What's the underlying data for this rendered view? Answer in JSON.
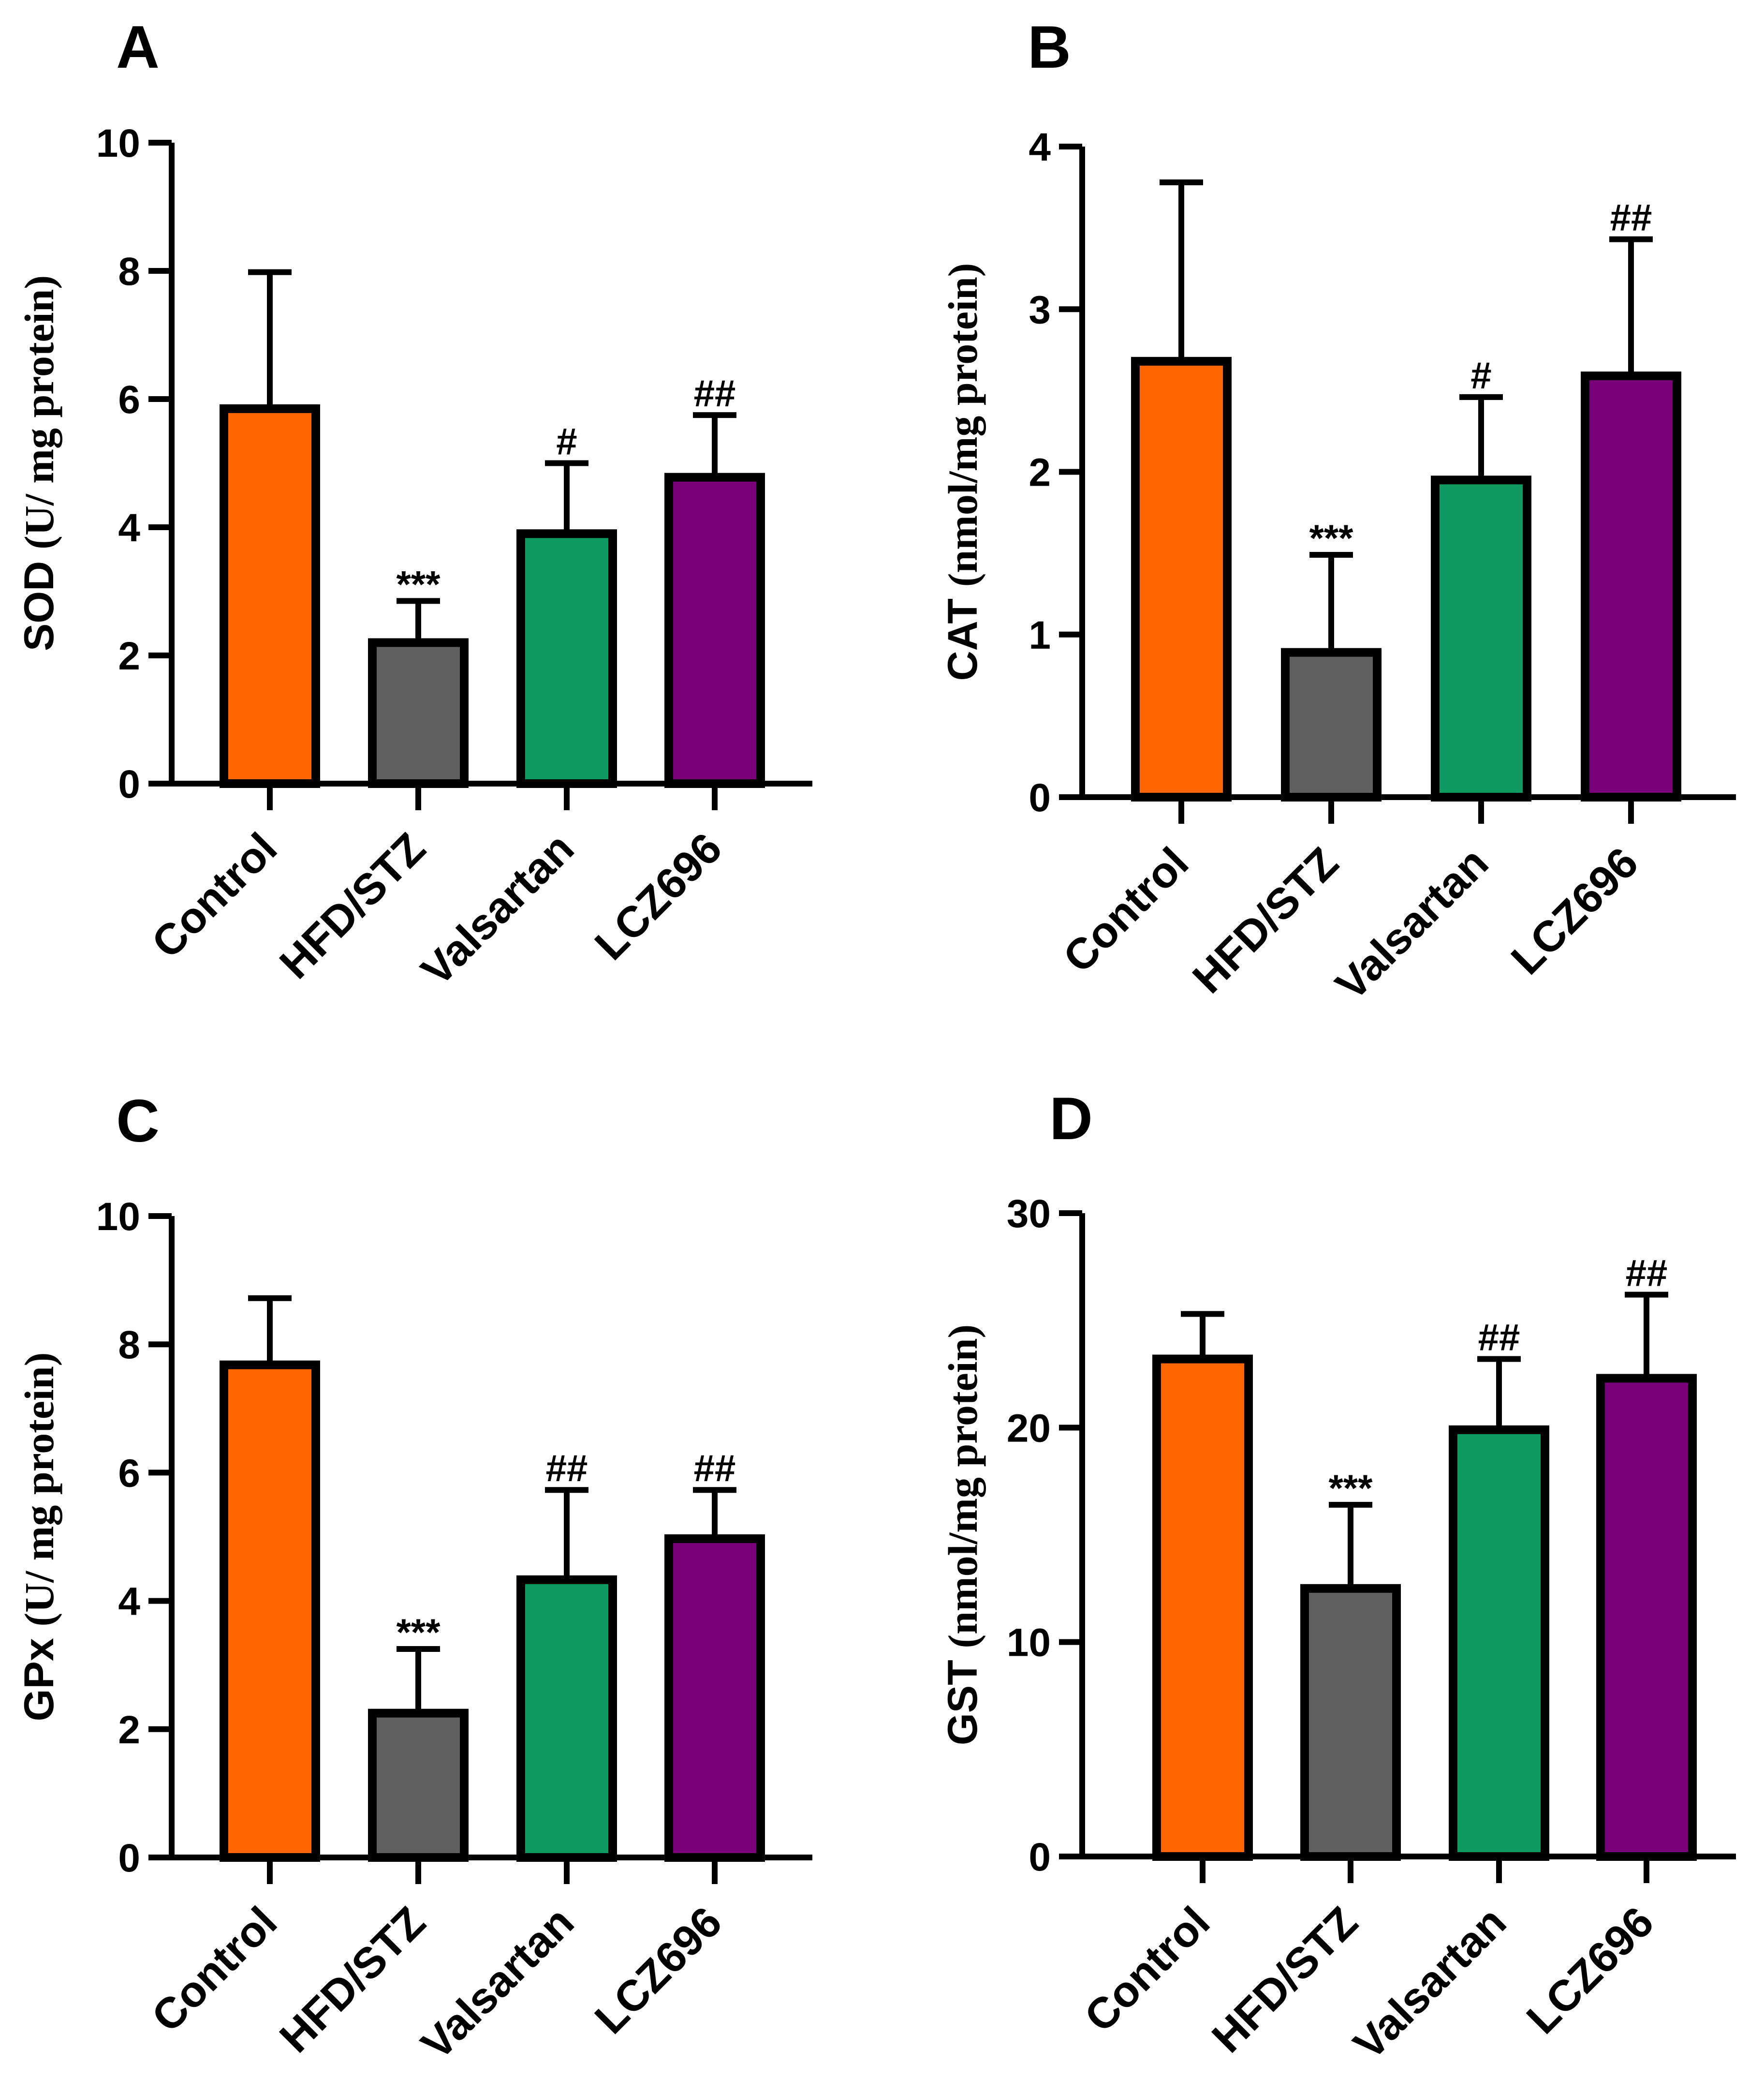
{
  "figure": {
    "categories": [
      "Control",
      "HFD/STZ",
      "Valsartan",
      "LCZ696"
    ],
    "colors": {
      "Control": "#FF6600",
      "HFD/STZ": "#5F5F5F",
      "Valsartan": "#0E9A60",
      "LCZ696": "#7A007A"
    }
  },
  "chart_data": [
    {
      "type": "bar",
      "panel": "A",
      "ylabel": "SOD (U/ mg protein)",
      "ylabel_prefix": "SOD",
      "ylabel_unit": "(U/ mg protein)",
      "ylim": [
        0,
        10
      ],
      "yticks": [
        "0",
        "2",
        "4",
        "6",
        "8",
        "10"
      ],
      "ytick_values": [
        0,
        2,
        4,
        6,
        8,
        10
      ],
      "categories": [
        "Control",
        "HFD/STZ",
        "Valsartan",
        "LCZ696"
      ],
      "values": [
        5.85,
        2.2,
        3.9,
        4.78
      ],
      "errors": [
        2.13,
        0.65,
        1.1,
        0.97
      ],
      "annotations": [
        "",
        "***",
        "#",
        "##"
      ]
    },
    {
      "type": "bar",
      "panel": "B",
      "ylabel": "CAT (nmol/mg protein)",
      "ylabel_prefix": "CAT",
      "ylabel_unit": "(nmol/mg protein)",
      "ylim": [
        0,
        4
      ],
      "yticks": [
        "0",
        "1",
        "2",
        "3",
        "4"
      ],
      "ytick_values": [
        0,
        1,
        2,
        3,
        4
      ],
      "categories": [
        "Control",
        "HFD/STZ",
        "Valsartan",
        "LCZ696"
      ],
      "values": [
        2.68,
        0.89,
        1.95,
        2.59
      ],
      "errors": [
        1.1,
        0.6,
        0.51,
        0.84
      ],
      "annotations": [
        "",
        "***",
        "#",
        "##"
      ]
    },
    {
      "type": "bar",
      "panel": "C",
      "ylabel": "GPx (U/ mg protein)",
      "ylabel_prefix": "GPx",
      "ylabel_unit": "(U/ mg protein)",
      "ylim": [
        0,
        10
      ],
      "yticks": [
        "0",
        "2",
        "4",
        "6",
        "8",
        "10"
      ],
      "ytick_values": [
        0,
        2,
        4,
        6,
        8,
        10
      ],
      "categories": [
        "Control",
        "HFD/STZ",
        "Valsartan",
        "LCZ696"
      ],
      "values": [
        7.68,
        2.25,
        4.33,
        4.97
      ],
      "errors": [
        1.04,
        1.0,
        1.4,
        0.76
      ],
      "annotations": [
        "",
        "***",
        "##",
        "##"
      ]
    },
    {
      "type": "bar",
      "panel": "D",
      "ylabel": "GST (nmol/mg protein)",
      "ylabel_prefix": "GST",
      "ylabel_unit": "(nmol/mg protein)",
      "ylim": [
        0,
        30
      ],
      "yticks": [
        "0",
        "10",
        "20",
        "30"
      ],
      "ytick_values": [
        0,
        10,
        20,
        30
      ],
      "categories": [
        "Control",
        "HFD/STZ",
        "Valsartan",
        "LCZ696"
      ],
      "values": [
        23.2,
        12.5,
        19.9,
        22.3
      ],
      "errors": [
        2.1,
        3.9,
        3.3,
        3.9
      ],
      "annotations": [
        "",
        "***",
        "##",
        "##"
      ]
    }
  ]
}
